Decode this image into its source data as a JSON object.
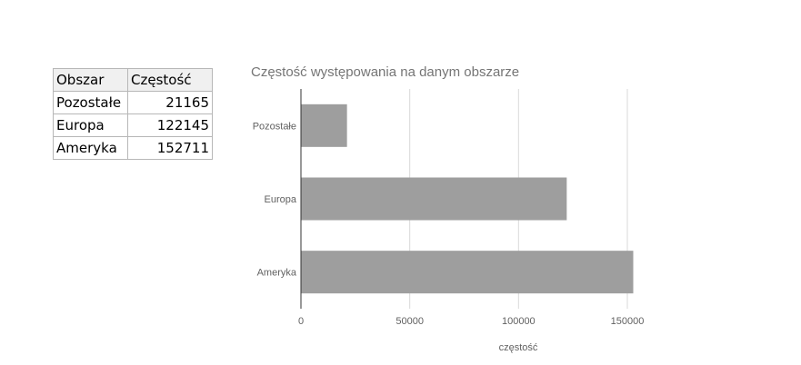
{
  "table": {
    "headers": [
      "Obszar",
      "Częstość"
    ],
    "rows": [
      [
        "Pozostałe",
        "21165"
      ],
      [
        "Europa",
        "122145"
      ],
      [
        "Ameryka",
        "152711"
      ]
    ]
  },
  "chart_data": {
    "type": "bar",
    "orientation": "horizontal",
    "title": "Częstość występowania na danym obszarze",
    "categories": [
      "Pozostałe",
      "Europa",
      "Ameryka"
    ],
    "values": [
      21165,
      122145,
      152711
    ],
    "xlabel": "częstość",
    "ylabel": "",
    "xlim": [
      0,
      150000
    ],
    "xticks": [
      0,
      50000,
      100000,
      150000
    ],
    "xtick_labels": [
      "0",
      "50000",
      "100000",
      "150000"
    ],
    "grid": true,
    "legend": "none",
    "colors": {
      "bar": "#9e9e9e",
      "grid": "#d9d9d9",
      "axis": "#333333"
    }
  }
}
